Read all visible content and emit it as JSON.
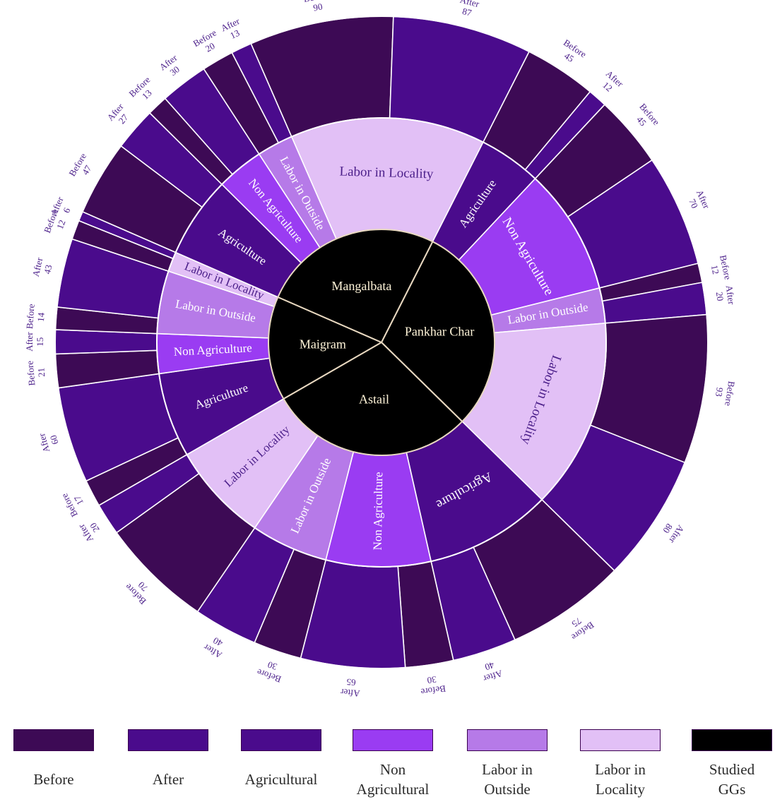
{
  "chart_data": {
    "type": "sunburst",
    "colors": {
      "Before": "#3d0a55",
      "After": "#4a0b8c",
      "Agricultural": "#4a0b8c",
      "Non Agricultural": "#9a3cf2",
      "Labor in Outside": "#b67ae8",
      "Labor in Locality": "#e2c0f6",
      "Studied GGs": "#000000"
    },
    "groups": [
      {
        "name": "Maigram",
        "categories": [
          {
            "name": "Agriculture",
            "level": "Agricultural",
            "before": 17,
            "after": 60
          },
          {
            "name": "Non Agriculture",
            "level": "Non Agricultural",
            "before": 21,
            "after": 15
          },
          {
            "name": "Labor in Outside",
            "level": "Labor in Outside",
            "before": 14,
            "after": 43
          },
          {
            "name": "Labor in Locality",
            "level": "Labor in Locality",
            "before": 12,
            "after": 6
          }
        ]
      },
      {
        "name": "Mangalbata",
        "categories": [
          {
            "name": "Agriculture",
            "level": "Agricultural",
            "before": 47,
            "after": 27
          },
          {
            "name": "Non Agriculture",
            "level": "Non Agricultural",
            "before": 13,
            "after": 30
          },
          {
            "name": "Labor in Outside",
            "level": "Labor in Outside",
            "before": 20,
            "after": 13
          },
          {
            "name": "Labor in Locality",
            "level": "Labor in Locality",
            "before": 90,
            "after": 87
          }
        ]
      },
      {
        "name": "Pankhar Char",
        "categories": [
          {
            "name": "Agriculture",
            "level": "Agricultural",
            "before": 45,
            "after": 12
          },
          {
            "name": "Non Agriculture",
            "level": "Non Agricultural",
            "before": 45,
            "after": 70
          },
          {
            "name": "Labor in Outside",
            "level": "Labor in Outside",
            "before": 12,
            "after": 20
          },
          {
            "name": "Labor in Locality",
            "level": "Labor in Locality",
            "before": 93,
            "after": 80
          }
        ]
      },
      {
        "name": "Astail",
        "categories": [
          {
            "name": "Agriculture",
            "level": "Agricultural",
            "before": 75,
            "after": 40
          },
          {
            "name": "Non Agriculture",
            "level": "Non Agricultural",
            "before": 30,
            "after": 65
          },
          {
            "name": "Labor in Outside",
            "level": "Labor in Outside",
            "before": 30,
            "after": 40
          },
          {
            "name": "Labor in Locality",
            "level": "Labor in Locality",
            "before": 70,
            "after": 20
          }
        ]
      }
    ],
    "outer_labels": {
      "before": "Before",
      "after": "After"
    },
    "legend": [
      {
        "key": "Before",
        "label": "Before"
      },
      {
        "key": "After",
        "label": "After"
      },
      {
        "key": "Agricultural",
        "label": "Agricultural"
      },
      {
        "key": "Non Agricultural",
        "label": "Non\nAgricultural"
      },
      {
        "key": "Labor in Outside",
        "label": "Labor in\nOutside"
      },
      {
        "key": "Labor in Locality",
        "label": "Labor in\nLocality"
      },
      {
        "key": "Studied GGs",
        "label": "Studied\nGGs"
      }
    ]
  }
}
